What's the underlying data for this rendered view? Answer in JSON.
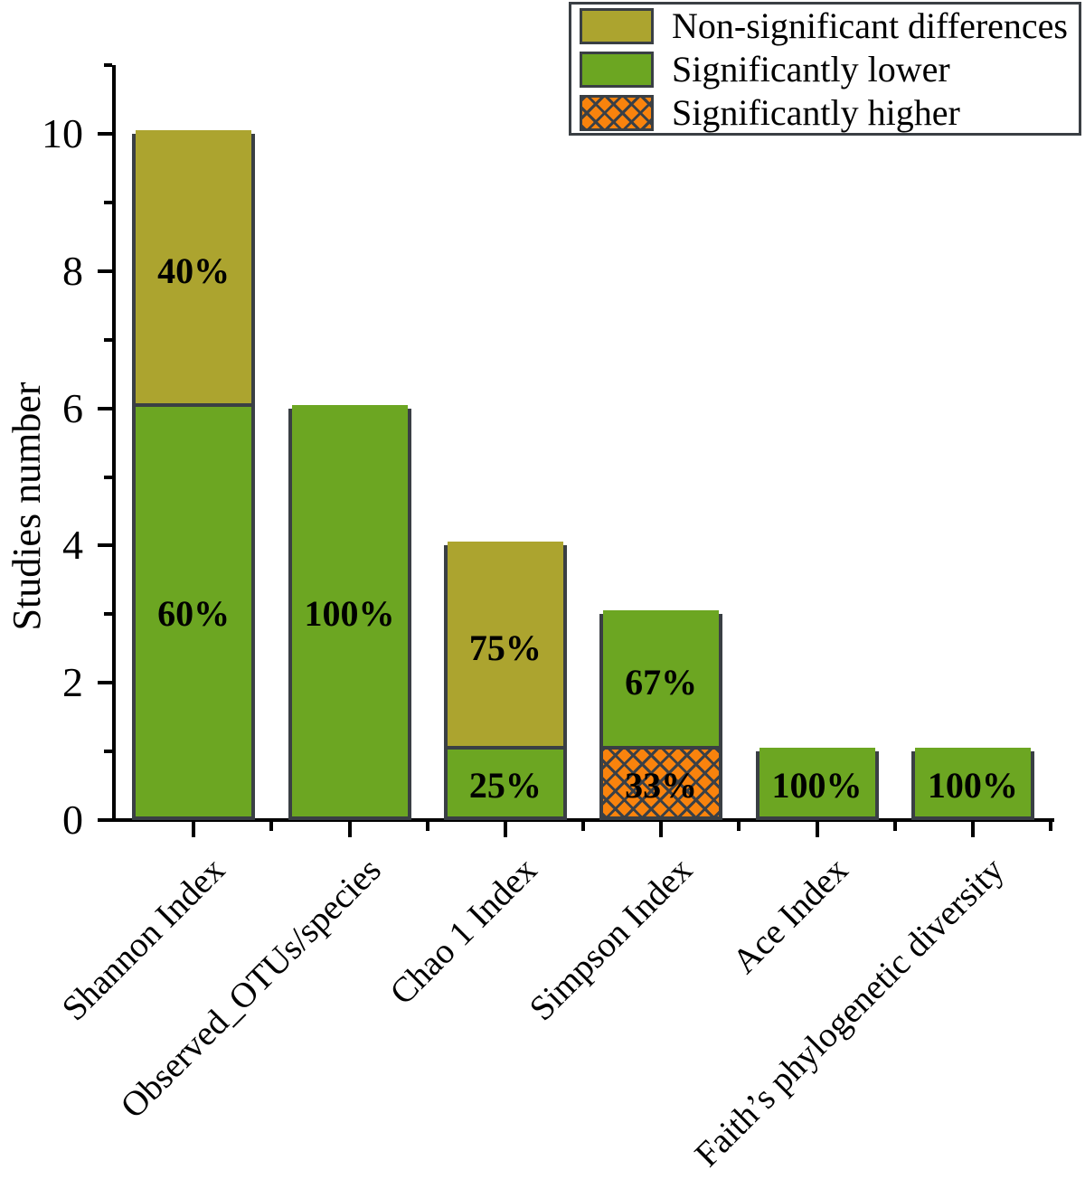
{
  "figure": {
    "background": "#ffffff"
  },
  "chart_data": {
    "type": "bar",
    "stacked": true,
    "title": "",
    "xlabel": "",
    "ylabel": "Studies number",
    "ylim": [
      0,
      11
    ],
    "yticks_major": [
      0,
      2,
      4,
      6,
      8,
      10
    ],
    "yticks_minor": [
      1,
      3,
      5,
      7,
      9,
      11
    ],
    "grid": false,
    "categories": [
      "Shannon Index",
      "Observed_OTUs/species",
      "Chao 1 Index",
      "Simpson Index",
      "Ace Index",
      "Faith’s phylogenetic diversity"
    ],
    "bars": [
      {
        "category": "Shannon Index",
        "total": 10,
        "segments": [
          {
            "key": "lower",
            "value": 6,
            "label": "60%"
          },
          {
            "key": "nonsig",
            "value": 4,
            "label": "40%"
          }
        ]
      },
      {
        "category": "Observed_OTUs/species",
        "total": 6,
        "segments": [
          {
            "key": "lower",
            "value": 6,
            "label": "100%"
          }
        ]
      },
      {
        "category": "Chao 1 Index",
        "total": 4,
        "segments": [
          {
            "key": "lower",
            "value": 1,
            "label": "25%"
          },
          {
            "key": "nonsig",
            "value": 3,
            "label": "75%"
          }
        ]
      },
      {
        "category": "Simpson Index",
        "total": 3,
        "segments": [
          {
            "key": "higher",
            "value": 1,
            "label": "33%"
          },
          {
            "key": "lower",
            "value": 2,
            "label": "67%"
          }
        ]
      },
      {
        "category": "Ace Index",
        "total": 1,
        "segments": [
          {
            "key": "lower",
            "value": 1,
            "label": "100%"
          }
        ]
      },
      {
        "category": "Faith’s phylogenetic diversity",
        "total": 1,
        "segments": [
          {
            "key": "lower",
            "value": 1,
            "label": "100%"
          }
        ]
      }
    ],
    "legend": {
      "position": "top-right",
      "entries": [
        {
          "key": "nonsig",
          "label": "Non-significant differences",
          "pattern": "solid"
        },
        {
          "key": "lower",
          "label": "Significantly lower",
          "pattern": "solid"
        },
        {
          "key": "higher",
          "label": "Significantly higher",
          "pattern": "crosshatch"
        }
      ]
    },
    "colors": {
      "nonsig": "#ACA42F",
      "lower": "#6CA622",
      "higher": "#F9830D",
      "hatch_line": "#3B4046",
      "bar_border": "#3A3F44",
      "axis": "#000000",
      "text": "#000000"
    }
  }
}
